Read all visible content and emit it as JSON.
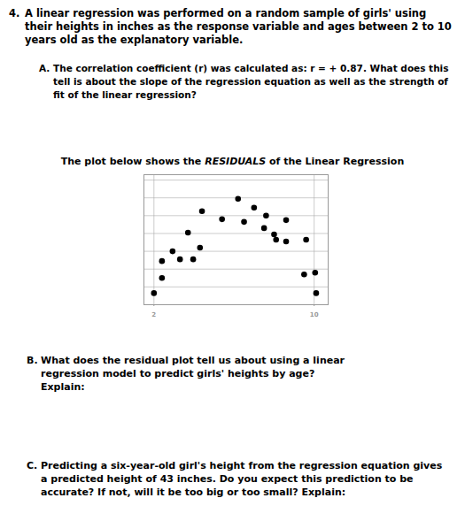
{
  "question": {
    "number": "4.",
    "text": "A linear regression was performed on a random sample of girls' using their heights in inches as the response variable and ages between 2 to 10 years old as the explanatory variable."
  },
  "parts": [
    {
      "label": "A.",
      "text": "The correlation coefficient (r) was calculated as: r = + 0.87. What does this tell is about the slope of the regression equation as well as the strength of fit of the linear regression?"
    },
    {
      "label": "B.",
      "text": "What does the residual plot tell us about using a linear regression model to predict girls' heights by age? Explain:"
    },
    {
      "label": "C.",
      "text": "Predicting a six-year-old girl's height from the regression equation gives a predicted height of 43 inches. Do you expect this prediction to be accurate? If not, will it be too big or too small? Explain:"
    }
  ],
  "plot_title": {
    "before": "The plot below shows the ",
    "emphasis": "RESIDUALS",
    "after": " of the Linear Regression"
  },
  "chart_data": {
    "type": "scatter",
    "x": [
      2.0,
      2.4,
      2.4,
      2.93,
      3.3,
      3.7,
      3.96,
      4.3,
      4.4,
      5.4,
      6.2,
      6.5,
      7.0,
      7.6,
      7.5,
      8.0,
      8.1,
      8.6,
      8.6,
      9.6,
      9.5,
      10.05,
      10.1
    ],
    "values": [
      -2.35,
      -1.5,
      -0.55,
      0,
      -0.45,
      1.05,
      -0.45,
      0.2,
      2.25,
      1.8,
      2.95,
      1.65,
      2.45,
      2.0,
      1.3,
      0.95,
      0.65,
      1.75,
      0.55,
      0.65,
      -1.3,
      -1.2,
      -2.35
    ],
    "xlim": [
      1.5,
      10.7
    ],
    "ylim": [
      -3,
      4.3
    ],
    "xticks": [
      2,
      10
    ],
    "yticks": [
      -2,
      -1,
      0,
      1,
      2,
      3,
      4
    ],
    "grid": true,
    "tick_labels": "x",
    "color": "#000000"
  }
}
